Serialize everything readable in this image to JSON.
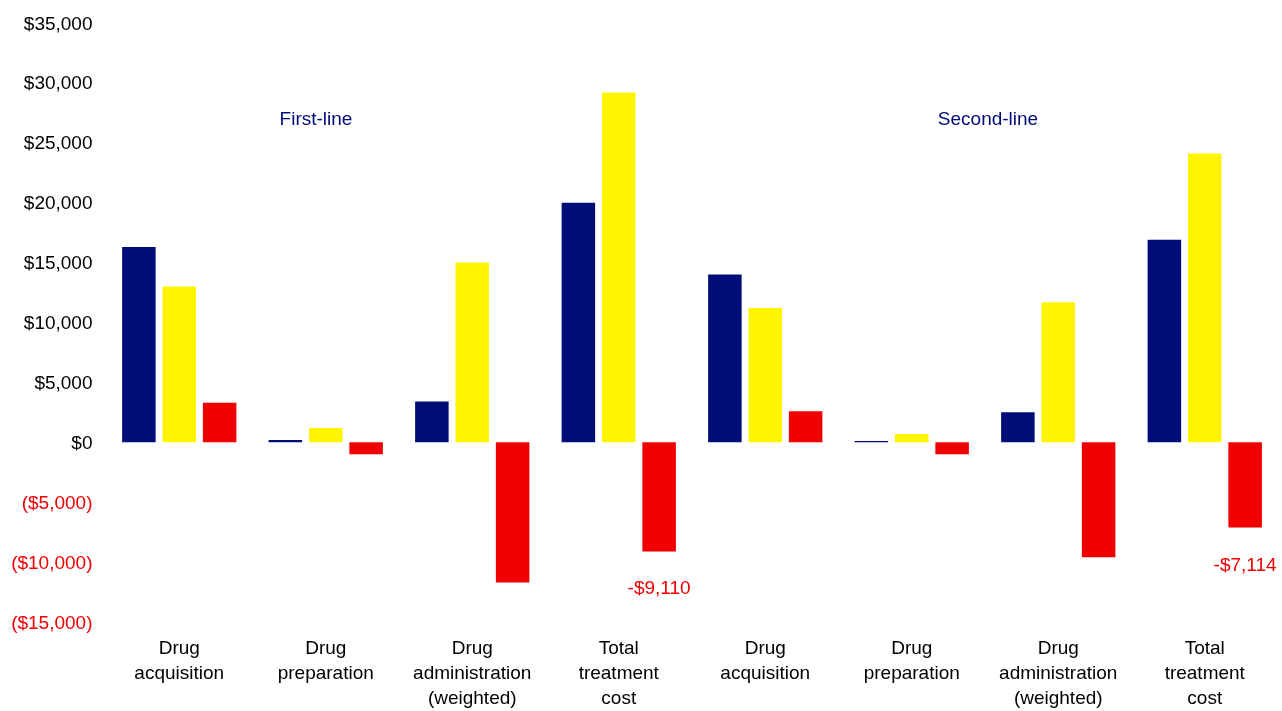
{
  "chart_data": {
    "type": "bar",
    "categories": [
      "Drug acquisition",
      "Drug preparation",
      "Drug administration (weighted)",
      "Total treatment cost",
      "Drug acquisition",
      "Drug preparation",
      "Drug administration (weighted)",
      "Total treatment cost"
    ],
    "series": [
      {
        "color": "#000c78",
        "values": [
          16300,
          200,
          3400,
          20000,
          14000,
          100,
          2500,
          16900
        ]
      },
      {
        "color": "#fff500",
        "values": [
          13000,
          1200,
          15000,
          29200,
          11200,
          700,
          11700,
          24100
        ]
      },
      {
        "color": "#f00000",
        "values": [
          3300,
          -1000,
          -11700,
          -9110,
          2600,
          -1000,
          -9600,
          -7114
        ],
        "value_labels": [
          null,
          null,
          null,
          "-$9,110",
          null,
          null,
          null,
          "-$7,114"
        ]
      }
    ],
    "ylim": [
      -15000,
      35000
    ],
    "yticks": [
      {
        "value": -15000,
        "label": "($15,000)"
      },
      {
        "value": -10000,
        "label": "($10,000)"
      },
      {
        "value": -5000,
        "label": "($5,000)"
      },
      {
        "value": 0,
        "label": "$0"
      },
      {
        "value": 5000,
        "label": "$5,000"
      },
      {
        "value": 10000,
        "label": "$10,000"
      },
      {
        "value": 15000,
        "label": "$15,000"
      },
      {
        "value": 20000,
        "label": "$20,000"
      },
      {
        "value": 25000,
        "label": "$25,000"
      },
      {
        "value": 30000,
        "label": "$30,000"
      },
      {
        "value": 35000,
        "label": "$35,000"
      }
    ],
    "annotations": [
      "First-line",
      "Second-line"
    ],
    "grid": false,
    "legend": false
  }
}
